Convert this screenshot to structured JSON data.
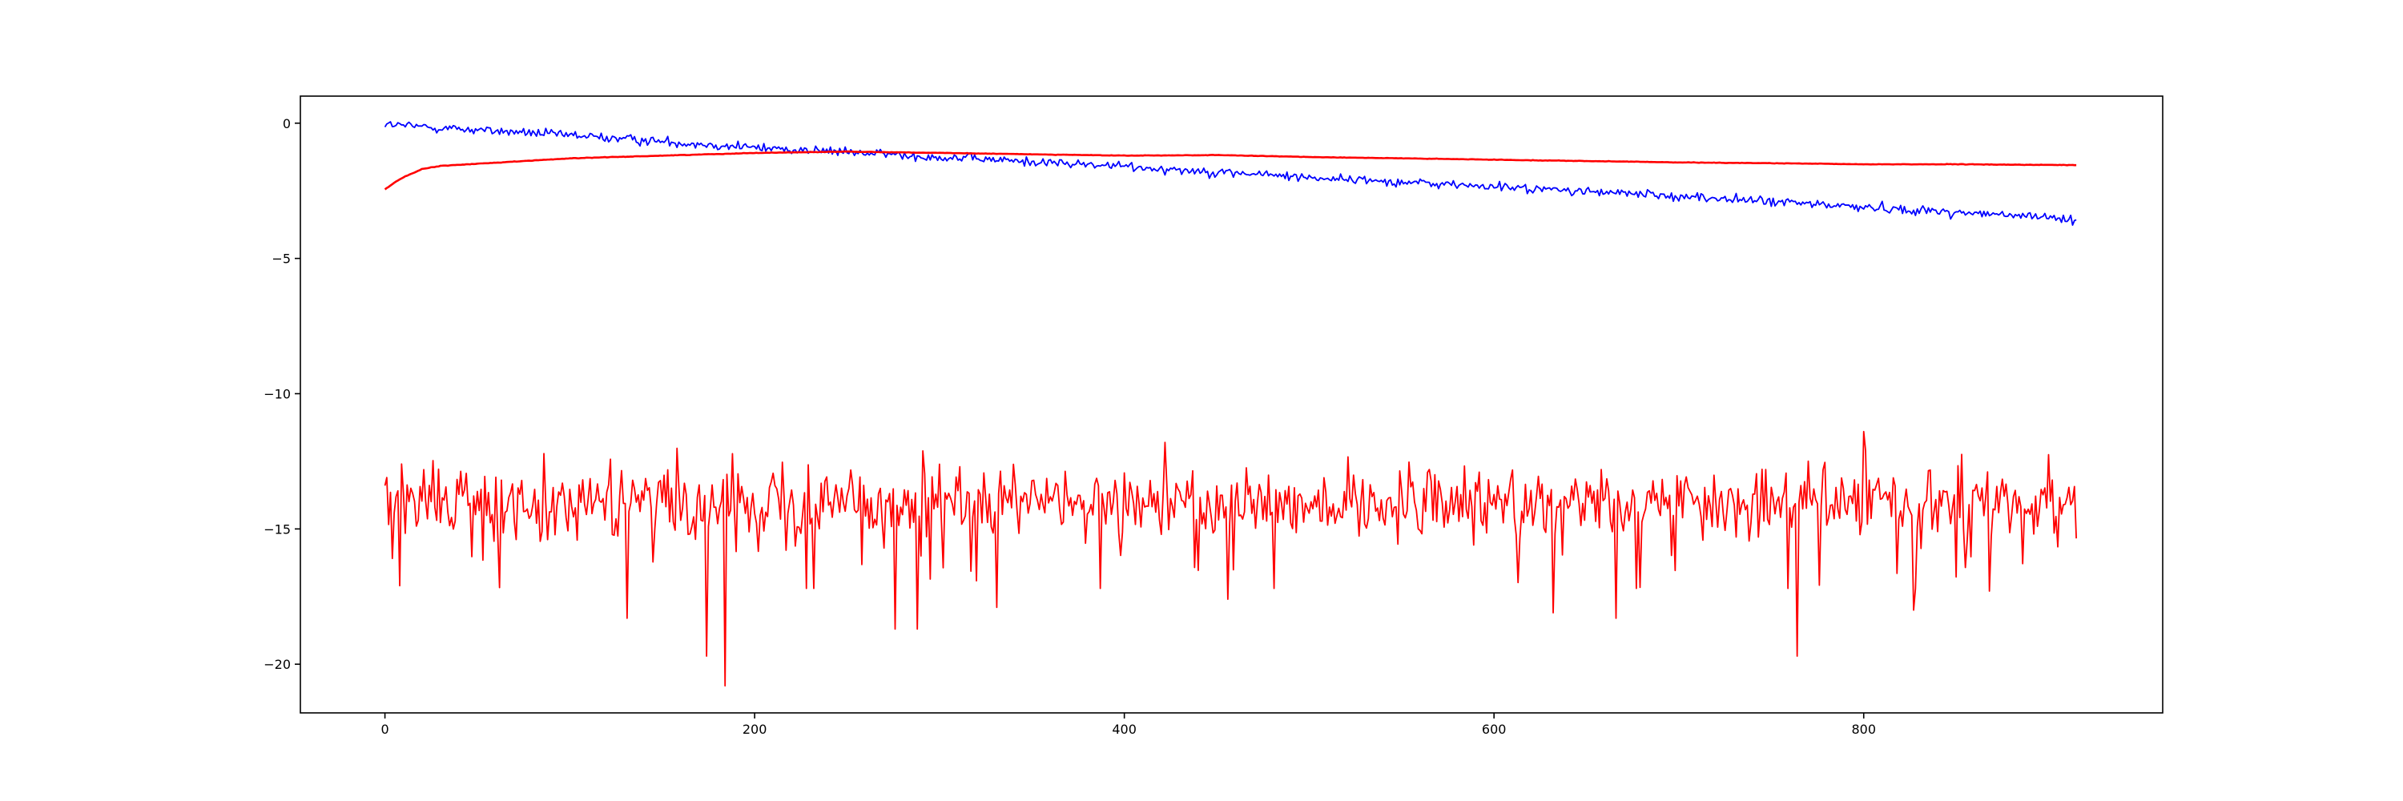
{
  "chart_data": {
    "type": "line",
    "title": "",
    "xlabel": "",
    "ylabel": "",
    "xlim": [
      -45.75,
      961.75
    ],
    "ylim": [
      -21.8,
      1.0
    ],
    "x_ticks": [
      0,
      200,
      400,
      600,
      800
    ],
    "x_tick_labels": [
      "0",
      "200",
      "400",
      "600",
      "800"
    ],
    "y_ticks": [
      0,
      -5,
      -10,
      -15,
      -20
    ],
    "y_tick_labels": [
      "0",
      "−5",
      "−10",
      "−15",
      "−20"
    ],
    "grid": false,
    "legend": "none",
    "series": [
      {
        "color": "#0000ff",
        "style": "noisy-descending",
        "n_points": 916,
        "anchors": [
          [
            0,
            -0.05
          ],
          [
            100,
            -0.45
          ],
          [
            200,
            -0.9
          ],
          [
            300,
            -1.25
          ],
          [
            400,
            -1.6
          ],
          [
            500,
            -2.0
          ],
          [
            600,
            -2.35
          ],
          [
            700,
            -2.7
          ],
          [
            800,
            -3.1
          ],
          [
            915,
            -3.55
          ]
        ],
        "noise_amplitude": 0.12
      },
      {
        "color": "#ff0000",
        "style": "smooth",
        "n_points": 916,
        "anchors": [
          [
            0,
            -2.45
          ],
          [
            5,
            -2.2
          ],
          [
            10,
            -2.0
          ],
          [
            20,
            -1.7
          ],
          [
            30,
            -1.58
          ],
          [
            50,
            -1.5
          ],
          [
            70,
            -1.42
          ],
          [
            100,
            -1.3
          ],
          [
            150,
            -1.2
          ],
          [
            200,
            -1.1
          ],
          [
            250,
            -1.05
          ],
          [
            300,
            -1.1
          ],
          [
            350,
            -1.15
          ],
          [
            400,
            -1.2
          ],
          [
            450,
            -1.18
          ],
          [
            500,
            -1.25
          ],
          [
            550,
            -1.3
          ],
          [
            600,
            -1.35
          ],
          [
            650,
            -1.4
          ],
          [
            700,
            -1.45
          ],
          [
            750,
            -1.48
          ],
          [
            800,
            -1.52
          ],
          [
            850,
            -1.52
          ],
          [
            915,
            -1.55
          ]
        ]
      },
      {
        "color": "#ff0000",
        "style": "volatile",
        "n_points": 916,
        "mean": -14.0,
        "range": [
          -20.8,
          -11.4
        ],
        "notable_points": [
          [
            0,
            -13.4
          ],
          [
            8,
            -17.1
          ],
          [
            131,
            -18.3
          ],
          [
            174,
            -19.7
          ],
          [
            184,
            -20.8
          ],
          [
            276,
            -18.7
          ],
          [
            288,
            -18.7
          ],
          [
            331,
            -17.9
          ],
          [
            456,
            -17.6
          ],
          [
            632,
            -18.1
          ],
          [
            666,
            -18.3
          ],
          [
            764,
            -19.7
          ],
          [
            800,
            -11.4
          ],
          [
            827,
            -18.0
          ],
          [
            868,
            -17.3
          ]
        ]
      }
    ]
  }
}
